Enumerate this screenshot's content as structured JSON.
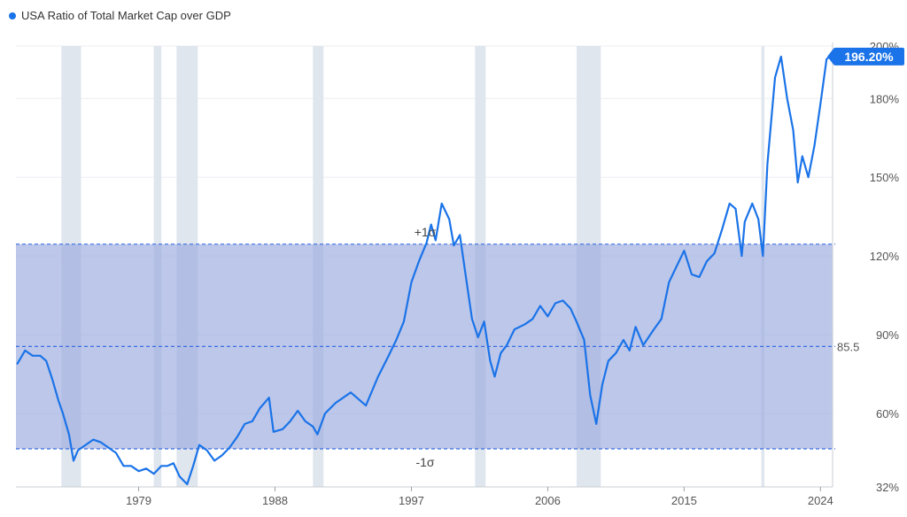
{
  "colors": {
    "line": "#1a73e8",
    "band": "#9aa9df",
    "recession": "#dfe6ee",
    "sigma_line": "#3a6ee0",
    "axis_text": "#555555",
    "grid": "#eceef2"
  },
  "legend": {
    "label": "USA Ratio of Total Market Cap over GDP"
  },
  "chart_data": {
    "type": "line",
    "title": "USA Ratio of Total Market Cap over GDP",
    "xlabel": "",
    "ylabel": "",
    "xlim": [
      1970.9,
      2024.8
    ],
    "ylim": [
      32,
      200
    ],
    "x_ticks": [
      1979,
      1988,
      1997,
      2006,
      2015,
      2024
    ],
    "x_tick_labels": [
      "1979",
      "1988",
      "1997",
      "2006",
      "2015",
      "2024"
    ],
    "y_ticks": [
      32,
      60,
      90,
      120,
      150,
      180,
      200
    ],
    "y_tick_labels": [
      "32%",
      "60%",
      "90%",
      "120%",
      "150%",
      "180%",
      "200%"
    ],
    "mean": {
      "value": 85.5,
      "label": "85.5"
    },
    "plus_1_sigma": {
      "value": 124.5,
      "label": "+1σ"
    },
    "minus_1_sigma": {
      "value": 46.5,
      "label": "-1σ"
    },
    "current_value_label": "196.20%",
    "recessions": [
      [
        1973.9,
        1975.2
      ],
      [
        1980.0,
        1980.5
      ],
      [
        1981.5,
        1982.9
      ],
      [
        1990.5,
        1991.2
      ],
      [
        2001.2,
        2001.9
      ],
      [
        2007.9,
        2009.5
      ],
      [
        2020.1,
        2020.3
      ]
    ],
    "series": [
      {
        "name": "USA Ratio of Total Market Cap over GDP",
        "x": [
          1971.0,
          1971.5,
          1972.0,
          1972.5,
          1972.9,
          1973.3,
          1973.7,
          1974.0,
          1974.4,
          1974.7,
          1975.0,
          1975.5,
          1976.0,
          1976.5,
          1977.0,
          1977.5,
          1978.0,
          1978.5,
          1979.0,
          1979.5,
          1980.0,
          1980.5,
          1980.9,
          1981.3,
          1981.7,
          1982.2,
          1982.6,
          1983.0,
          1983.5,
          1984.0,
          1984.5,
          1985.0,
          1985.5,
          1986.0,
          1986.5,
          1987.0,
          1987.6,
          1987.9,
          1988.5,
          1989.0,
          1989.5,
          1990.0,
          1990.5,
          1990.8,
          1991.3,
          1992.0,
          1993.0,
          1994.0,
          1994.8,
          1995.5,
          1996.0,
          1996.5,
          1997.0,
          1997.5,
          1998.0,
          1998.3,
          1998.6,
          1999.0,
          1999.5,
          1999.8,
          2000.2,
          2000.6,
          2001.0,
          2001.4,
          2001.8,
          2002.2,
          2002.5,
          2002.9,
          2003.3,
          2003.8,
          2004.5,
          2005.0,
          2005.5,
          2006.0,
          2006.5,
          2007.0,
          2007.5,
          2007.9,
          2008.4,
          2008.8,
          2009.2,
          2009.6,
          2010.0,
          2010.5,
          2011.0,
          2011.4,
          2011.8,
          2012.3,
          2013.0,
          2013.5,
          2014.0,
          2014.5,
          2015.0,
          2015.5,
          2016.0,
          2016.5,
          2017.0,
          2017.5,
          2018.0,
          2018.4,
          2018.8,
          2019.0,
          2019.5,
          2019.9,
          2020.2,
          2020.5,
          2020.8,
          2021.0,
          2021.4,
          2021.8,
          2022.2,
          2022.5,
          2022.8,
          2023.2,
          2023.6,
          2024.0,
          2024.4,
          2024.6
        ],
        "y": [
          79,
          84,
          82,
          82,
          80,
          73,
          65,
          60,
          52,
          42,
          46,
          48,
          50,
          49,
          47,
          45,
          40,
          40,
          38,
          39,
          37,
          40,
          40,
          41,
          36,
          33,
          40,
          48,
          46,
          42,
          44,
          47,
          51,
          56,
          57,
          62,
          66,
          53,
          54,
          57,
          61,
          57,
          55,
          52,
          60,
          64,
          68,
          63,
          74,
          82,
          88,
          95,
          110,
          118,
          125,
          132,
          126,
          140,
          134,
          124,
          128,
          112,
          96,
          89,
          95,
          80,
          74,
          83,
          86,
          92,
          94,
          96,
          101,
          97,
          102,
          103,
          100,
          95,
          88,
          67,
          56,
          71,
          80,
          83,
          88,
          84,
          93,
          86,
          92,
          96,
          110,
          116,
          122,
          113,
          112,
          118,
          121,
          130,
          140,
          138,
          120,
          133,
          140,
          134,
          120,
          155,
          175,
          188,
          196,
          180,
          168,
          148,
          158,
          150,
          162,
          178,
          195,
          196
        ]
      }
    ]
  }
}
